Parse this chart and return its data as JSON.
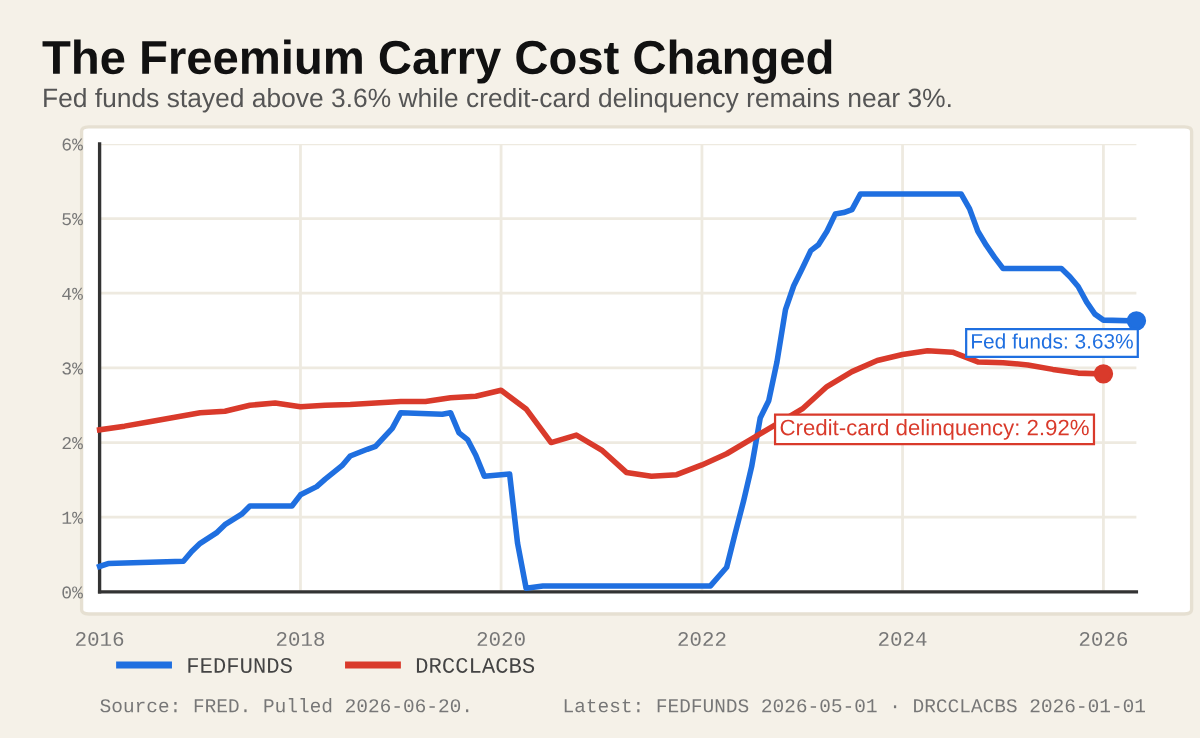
{
  "chart_data": {
    "type": "line",
    "title": "The Freemium Carry Cost Changed",
    "subtitle": "Fed funds stayed above 3.6% while credit-card delinquency remains near 3%.",
    "xlim": [
      "2016-01-01",
      "2026-05-01"
    ],
    "xticks": [
      "2016",
      "2018",
      "2020",
      "2022",
      "2024",
      "2026"
    ],
    "ylim": [
      0,
      6
    ],
    "yticks": [
      {
        "value": 0,
        "label": "0%"
      },
      {
        "value": 1,
        "label": "1%"
      },
      {
        "value": 2,
        "label": "2%"
      },
      {
        "value": 3,
        "label": "3%"
      },
      {
        "value": 4,
        "label": "4%"
      },
      {
        "value": 5,
        "label": "5%"
      },
      {
        "value": 6,
        "label": "6%"
      }
    ],
    "grid": true,
    "legend": "bottom",
    "marker": "none",
    "line_style": "solid",
    "series": [
      {
        "name": "FEDFUNDS",
        "color": "#1f6fe0",
        "x": [
          "2016-01",
          "2016-02",
          "2016-11",
          "2016-12",
          "2017-01",
          "2017-03",
          "2017-04",
          "2017-06",
          "2017-07",
          "2017-12",
          "2018-01",
          "2018-03",
          "2018-04",
          "2018-06",
          "2018-07",
          "2018-09",
          "2018-10",
          "2018-12",
          "2019-01",
          "2019-06",
          "2019-07",
          "2019-08",
          "2019-09",
          "2019-10",
          "2019-11",
          "2020-02",
          "2020-03",
          "2020-04",
          "2020-06",
          "2021-06",
          "2022-02",
          "2022-03",
          "2022-04",
          "2022-05",
          "2022-06",
          "2022-07",
          "2022-08",
          "2022-09",
          "2022-10",
          "2022-11",
          "2022-12",
          "2023-01",
          "2023-02",
          "2023-03",
          "2023-04",
          "2023-05",
          "2023-06",
          "2023-07",
          "2023-08",
          "2024-08",
          "2024-09",
          "2024-10",
          "2024-11",
          "2024-12",
          "2025-01",
          "2025-08",
          "2025-09",
          "2025-10",
          "2025-11",
          "2025-12",
          "2026-01",
          "2026-05"
        ],
        "values": [
          0.34,
          0.38,
          0.41,
          0.54,
          0.65,
          0.79,
          0.9,
          1.04,
          1.15,
          1.15,
          1.3,
          1.41,
          1.51,
          1.69,
          1.82,
          1.91,
          1.95,
          2.19,
          2.4,
          2.38,
          2.4,
          2.13,
          2.04,
          1.83,
          1.55,
          1.58,
          0.65,
          0.05,
          0.08,
          0.08,
          0.08,
          0.2,
          0.33,
          0.77,
          1.21,
          1.68,
          2.33,
          2.56,
          3.08,
          3.78,
          4.1,
          4.33,
          4.57,
          4.65,
          4.83,
          5.06,
          5.08,
          5.12,
          5.33,
          5.33,
          5.13,
          4.83,
          4.64,
          4.48,
          4.33,
          4.33,
          4.22,
          4.09,
          3.88,
          3.72,
          3.64,
          3.63
        ]
      },
      {
        "name": "DRCCLACBS",
        "color": "#d93a2b",
        "x": [
          "2016-01",
          "2016-04",
          "2016-07",
          "2016-10",
          "2017-01",
          "2017-04",
          "2017-07",
          "2017-10",
          "2018-01",
          "2018-04",
          "2018-07",
          "2018-10",
          "2019-01",
          "2019-04",
          "2019-07",
          "2019-10",
          "2020-01",
          "2020-04",
          "2020-07",
          "2020-10",
          "2021-01",
          "2021-04",
          "2021-07",
          "2021-10",
          "2022-01",
          "2022-04",
          "2022-07",
          "2022-10",
          "2023-01",
          "2023-04",
          "2023-07",
          "2023-10",
          "2024-01",
          "2024-04",
          "2024-07",
          "2024-10",
          "2025-01",
          "2025-04",
          "2025-07",
          "2025-10",
          "2026-01"
        ],
        "values": [
          2.17,
          2.22,
          2.28,
          2.34,
          2.4,
          2.42,
          2.5,
          2.53,
          2.48,
          2.5,
          2.51,
          2.53,
          2.55,
          2.55,
          2.6,
          2.62,
          2.7,
          2.45,
          2.0,
          2.1,
          1.9,
          1.6,
          1.55,
          1.57,
          1.7,
          1.85,
          2.05,
          2.25,
          2.45,
          2.75,
          2.95,
          3.1,
          3.18,
          3.23,
          3.21,
          3.08,
          3.07,
          3.04,
          2.98,
          2.93,
          2.92
        ]
      }
    ],
    "annotations": [
      {
        "text": "Fed funds: 3.63%",
        "x": "2026-05",
        "y": 3.63
      },
      {
        "text": "Credit-card delinquency: 2.92%",
        "x": "2026-01",
        "y": 2.92
      },
      "Source: FRED. Pulled 2026-06-20.",
      "Latest: FEDFUNDS 2026-05-01 · DRCCLACBS 2026-01-01"
    ]
  }
}
